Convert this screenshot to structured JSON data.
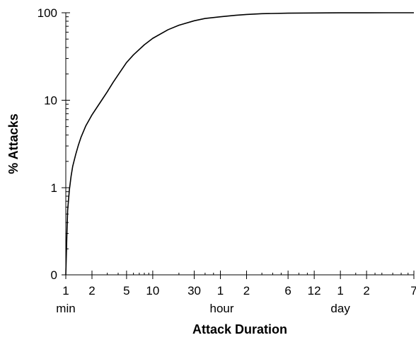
{
  "chart_data": {
    "type": "line",
    "title": "",
    "xlabel": "Attack Duration",
    "ylabel": "% Attacks",
    "x_scale": "log",
    "y_scale": "log (0 at bottom)",
    "x_unit": "minutes",
    "xlim": [
      1,
      10080
    ],
    "ylim": [
      0,
      100
    ],
    "grid": false,
    "legend": "none",
    "line_color": "#000000",
    "x_ticks": [
      {
        "value": 1,
        "label": "1"
      },
      {
        "value": 2,
        "label": "2"
      },
      {
        "value": 5,
        "label": "5"
      },
      {
        "value": 10,
        "label": "10"
      },
      {
        "value": 30,
        "label": "30"
      },
      {
        "value": 60,
        "label": "1"
      },
      {
        "value": 120,
        "label": "2"
      },
      {
        "value": 360,
        "label": "6"
      },
      {
        "value": 720,
        "label": "12"
      },
      {
        "value": 1440,
        "label": "1"
      },
      {
        "value": 2880,
        "label": "2"
      },
      {
        "value": 10080,
        "label": "7"
      }
    ],
    "x_unit_labels": [
      {
        "at": 1,
        "label": "min"
      },
      {
        "at": 60,
        "label": "hour"
      },
      {
        "at": 1440,
        "label": "day"
      }
    ],
    "y_ticks": [
      {
        "value": 0,
        "label": "0"
      },
      {
        "value": 1,
        "label": "1"
      },
      {
        "value": 10,
        "label": "10"
      },
      {
        "value": 100,
        "label": "100"
      }
    ],
    "series": [
      {
        "x": [
          1,
          1.03,
          1.05,
          1.1,
          1.15,
          1.2,
          1.3,
          1.4,
          1.5,
          1.7,
          2,
          2.5,
          3,
          3.5,
          4,
          5,
          6,
          8,
          10,
          15,
          20,
          30,
          40,
          60,
          90,
          120,
          180,
          360,
          720,
          1440,
          2880,
          5000,
          10080
        ],
        "y": [
          0.1,
          0.3,
          0.55,
          0.95,
          1.35,
          1.75,
          2.4,
          3.1,
          3.8,
          5.1,
          6.8,
          9.5,
          12.5,
          16,
          19.5,
          27,
          33,
          43,
          51,
          64,
          72,
          81,
          86,
          90,
          93.5,
          95.5,
          97.5,
          99,
          99.5,
          99.8,
          99.9,
          100,
          100
        ]
      }
    ]
  }
}
